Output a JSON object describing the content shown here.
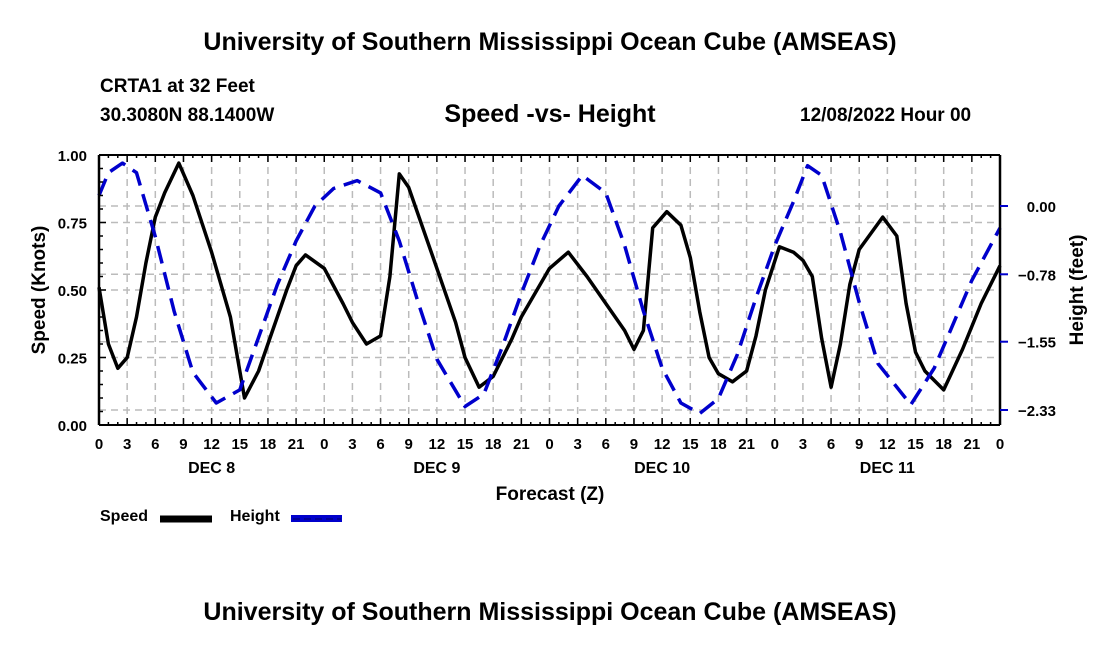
{
  "header": {
    "main_title": "University of Southern Mississippi Ocean Cube (AMSEAS)",
    "station": "CRTA1 at 32 Feet",
    "coordinates": "30.3080N  88.1400W",
    "subtitle": "Speed -vs- Height",
    "datestamp": "12/08/2022 Hour 00"
  },
  "footer": {
    "repeated_title": "University of Southern Mississippi Ocean Cube (AMSEAS)"
  },
  "legend": {
    "items": [
      {
        "label": "Speed",
        "color": "#000000",
        "style": "solid"
      },
      {
        "label": "Height",
        "color": "#0000cc",
        "style": "dashed"
      }
    ]
  },
  "chart_data": {
    "type": "line",
    "title": "Speed -vs- Height",
    "xlabel": "Forecast (Z)",
    "ylabel": "Speed (Knots)",
    "y2label": "Height (feet)",
    "x_range_hours": [
      0,
      96
    ],
    "x_tick_step_hours": 3,
    "x_tick_labels": [
      "0",
      "3",
      "6",
      "9",
      "12",
      "15",
      "18",
      "21",
      "0",
      "3",
      "6",
      "9",
      "12",
      "15",
      "18",
      "21",
      "0",
      "3",
      "6",
      "9",
      "12",
      "15",
      "18",
      "21",
      "0",
      "3",
      "6",
      "9",
      "12",
      "15",
      "18",
      "21",
      "0"
    ],
    "day_labels": [
      {
        "label": "DEC 8",
        "center_hour": 12
      },
      {
        "label": "DEC 9",
        "center_hour": 36
      },
      {
        "label": "DEC 10",
        "center_hour": 60
      },
      {
        "label": "DEC 11",
        "center_hour": 84
      }
    ],
    "ylim": [
      0,
      1
    ],
    "y_ticks": [
      0,
      0.25,
      0.5,
      0.75,
      1.0
    ],
    "y_tick_labels": [
      "0.00",
      "0.25",
      "0.50",
      "0.75",
      "1.00"
    ],
    "y2lim": [
      -2.6,
      0.6
    ],
    "y2_ticks": [
      0.0,
      -0.78,
      -1.55,
      -2.33
    ],
    "y2_tick_labels": [
      "0.00",
      "−0.78",
      "−1.55",
      "−2.33"
    ],
    "grid": true,
    "legend_position": "bottom-left",
    "series": [
      {
        "name": "Speed",
        "axis": "left",
        "color": "#000000",
        "dash": false,
        "x": [
          0,
          1,
          2,
          3,
          4,
          5,
          6,
          7,
          8.5,
          10,
          12,
          14,
          15.5,
          17,
          18,
          20,
          21,
          22,
          24,
          26,
          27,
          28.5,
          30,
          31,
          32,
          33,
          35,
          36,
          38,
          39,
          40.5,
          42,
          44,
          45,
          48,
          50,
          52,
          54,
          56,
          57,
          58,
          59,
          60.5,
          62,
          63,
          64,
          65,
          66,
          67.5,
          69,
          70,
          71,
          72.5,
          74,
          75,
          76,
          77,
          78,
          79,
          80,
          81,
          83.5,
          85,
          86,
          87,
          88,
          90,
          92,
          94,
          96
        ],
        "y": [
          0.51,
          0.3,
          0.21,
          0.25,
          0.4,
          0.6,
          0.77,
          0.86,
          0.97,
          0.85,
          0.64,
          0.4,
          0.1,
          0.2,
          0.3,
          0.5,
          0.59,
          0.63,
          0.58,
          0.45,
          0.38,
          0.3,
          0.33,
          0.55,
          0.93,
          0.88,
          0.68,
          0.58,
          0.38,
          0.25,
          0.14,
          0.18,
          0.32,
          0.4,
          0.58,
          0.64,
          0.55,
          0.45,
          0.35,
          0.28,
          0.35,
          0.73,
          0.79,
          0.74,
          0.62,
          0.42,
          0.25,
          0.19,
          0.16,
          0.2,
          0.33,
          0.5,
          0.66,
          0.64,
          0.61,
          0.55,
          0.32,
          0.14,
          0.3,
          0.52,
          0.65,
          0.77,
          0.7,
          0.45,
          0.27,
          0.2,
          0.13,
          0.28,
          0.45,
          0.59
        ]
      },
      {
        "name": "Height",
        "axis": "right",
        "color": "#0000cc",
        "dash": true,
        "x": [
          0,
          1,
          2.5,
          4,
          6,
          8,
          10,
          12.5,
          15,
          17,
          19,
          21,
          23,
          25,
          27.5,
          30,
          32,
          34,
          36,
          39,
          41,
          43,
          45,
          47,
          49,
          51.5,
          54,
          56,
          58,
          60,
          62,
          64,
          66,
          68,
          70,
          72,
          74,
          75.5,
          77,
          79,
          81,
          83,
          86.5,
          89,
          91,
          93,
          96
        ],
        "y": [
          0.12,
          0.38,
          0.49,
          0.38,
          -0.35,
          -1.2,
          -1.9,
          -2.25,
          -2.1,
          -1.5,
          -0.9,
          -0.4,
          0.0,
          0.2,
          0.29,
          0.15,
          -0.4,
          -1.1,
          -1.75,
          -2.29,
          -2.15,
          -1.6,
          -1.0,
          -0.45,
          0.0,
          0.35,
          0.15,
          -0.45,
          -1.2,
          -1.85,
          -2.25,
          -2.37,
          -2.2,
          -1.7,
          -1.05,
          -0.45,
          0.05,
          0.46,
          0.35,
          -0.3,
          -1.1,
          -1.8,
          -2.27,
          -1.85,
          -1.35,
          -0.85,
          -0.25
        ]
      }
    ]
  }
}
